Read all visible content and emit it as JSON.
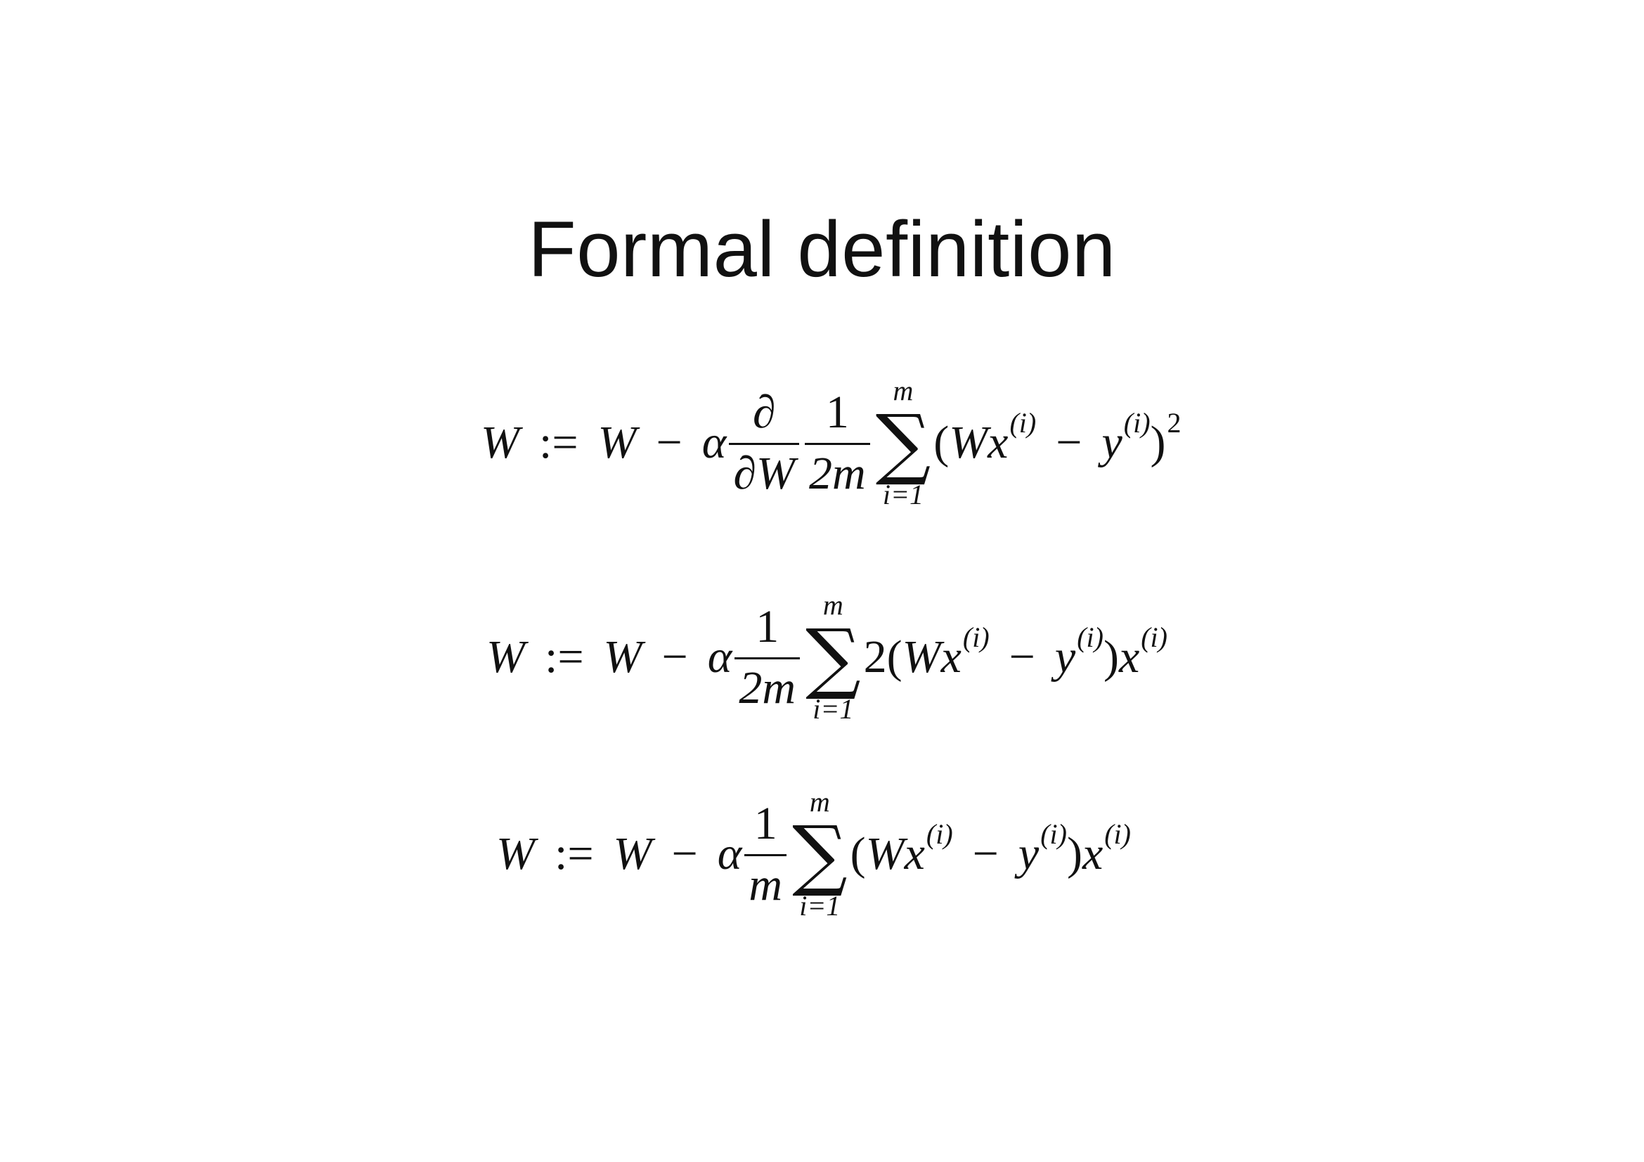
{
  "title": "Formal definition",
  "equations": [
    {
      "lhs": "W",
      "assign": ":=",
      "w": "W",
      "minus": "−",
      "alpha": "α",
      "partial_num": "∂",
      "partial_den": "∂W",
      "coef_num": "1",
      "coef_den": "2m",
      "sum_upper": "m",
      "sum_symbol": "∑",
      "sum_lower": "i=1",
      "open": "(",
      "wx": "Wx",
      "sup_i1": "(i)",
      "minus2": "−",
      "y": "y",
      "sup_i2": "(i)",
      "close": ")",
      "sup_pow": "2"
    },
    {
      "lhs": "W",
      "assign": ":=",
      "w": "W",
      "minus": "−",
      "alpha": "α",
      "coef_num": "1",
      "coef_den": "2m",
      "sum_upper": "m",
      "sum_symbol": "∑",
      "sum_lower": "i=1",
      "two": "2",
      "open": "(",
      "wx": "Wx",
      "sup_i1": "(i)",
      "minus2": "−",
      "y": "y",
      "sup_i2": "(i)",
      "close": ")",
      "x": "x",
      "sup_i3": "(i)"
    },
    {
      "lhs": "W",
      "assign": ":=",
      "w": "W",
      "minus": "−",
      "alpha": "α",
      "coef_num": "1",
      "coef_den": "m",
      "sum_upper": "m",
      "sum_symbol": "∑",
      "sum_lower": "i=1",
      "open": "(",
      "wx": "Wx",
      "sup_i1": "(i)",
      "minus2": "−",
      "y": "y",
      "sup_i2": "(i)",
      "close": ")",
      "x": "x",
      "sup_i3": "(i)"
    }
  ]
}
